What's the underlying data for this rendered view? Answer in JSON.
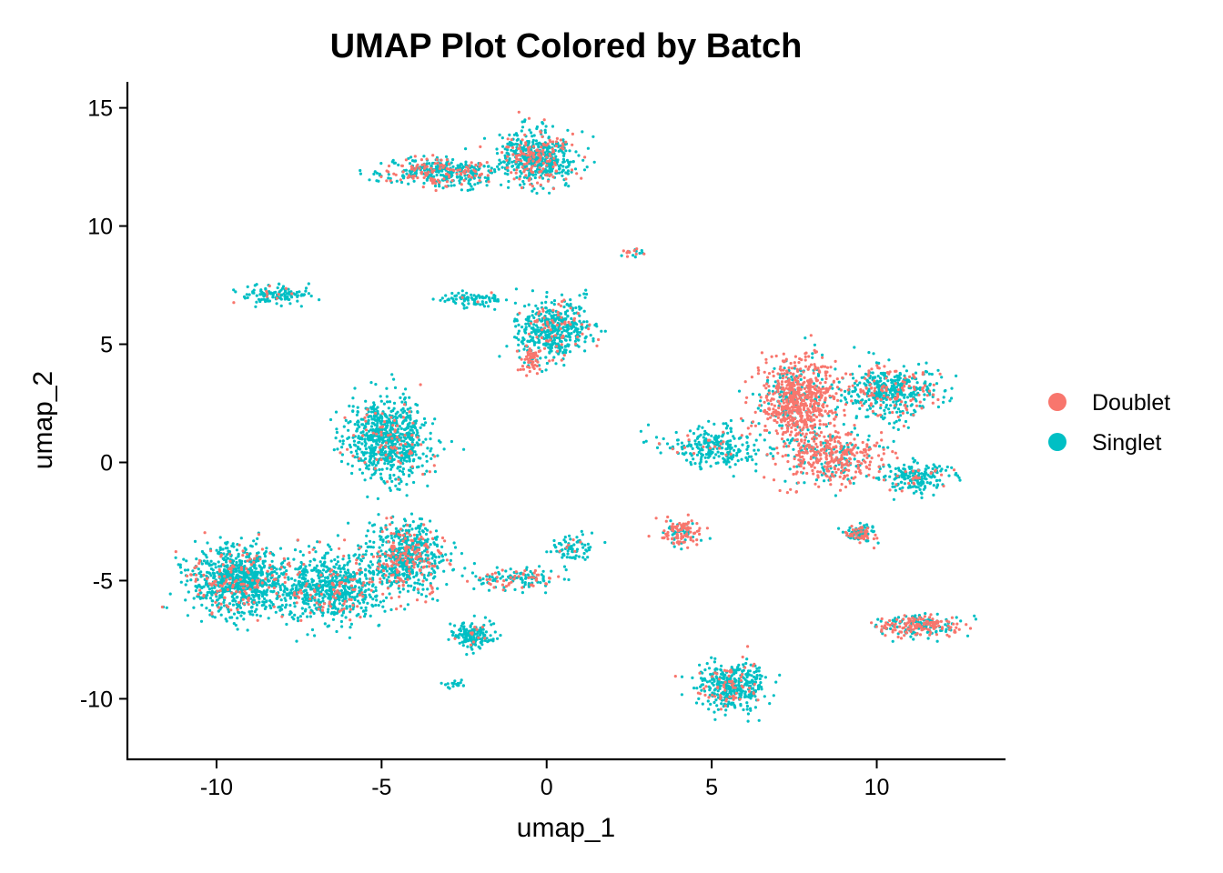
{
  "chart_data": {
    "type": "scatter",
    "title": "UMAP Plot Colored by Batch",
    "xlabel": "umap_1",
    "ylabel": "umap_2",
    "xlim": [
      -12.7,
      13.9
    ],
    "ylim": [
      -12.6,
      16.1
    ],
    "x_ticks": [
      -10,
      -5,
      0,
      5,
      10
    ],
    "y_ticks": [
      -10,
      -5,
      0,
      5,
      10,
      15
    ],
    "x_tick_labels": [
      "-10",
      "-5",
      "0",
      "5",
      "10"
    ],
    "y_tick_labels": [
      "-10",
      "-5",
      "0",
      "5",
      "10",
      "15"
    ],
    "grid": false,
    "legend_position": "right",
    "series": [
      {
        "name": "Doublet",
        "color": "#F8766D"
      },
      {
        "name": "Singlet",
        "color": "#00BFC4"
      }
    ],
    "clusters": [
      {
        "cx": -0.3,
        "cy": 12.9,
        "sx": 1.0,
        "sy": 1.0,
        "n": 600,
        "doublet_frac": 0.25
      },
      {
        "cx": -3.2,
        "cy": 12.3,
        "sx": 1.6,
        "sy": 0.55,
        "n": 420,
        "doublet_frac": 0.3
      },
      {
        "cx": -8.2,
        "cy": 7.1,
        "sx": 1.0,
        "sy": 0.35,
        "n": 120,
        "doublet_frac": 0.1
      },
      {
        "cx": 0.2,
        "cy": 5.6,
        "sx": 1.0,
        "sy": 1.1,
        "n": 480,
        "doublet_frac": 0.15
      },
      {
        "cx": -0.5,
        "cy": 4.4,
        "sx": 0.3,
        "sy": 0.5,
        "n": 60,
        "doublet_frac": 0.9
      },
      {
        "cx": -2.2,
        "cy": 6.9,
        "sx": 1.0,
        "sy": 0.3,
        "n": 90,
        "doublet_frac": 0.05
      },
      {
        "cx": 7.6,
        "cy": 2.6,
        "sx": 1.0,
        "sy": 1.6,
        "n": 750,
        "doublet_frac": 0.78
      },
      {
        "cx": 10.4,
        "cy": 3.0,
        "sx": 1.3,
        "sy": 1.0,
        "n": 480,
        "doublet_frac": 0.25
      },
      {
        "cx": 8.6,
        "cy": 0.2,
        "sx": 1.4,
        "sy": 1.0,
        "n": 420,
        "doublet_frac": 0.7
      },
      {
        "cx": 11.3,
        "cy": -0.6,
        "sx": 0.8,
        "sy": 0.6,
        "n": 200,
        "doublet_frac": 0.1
      },
      {
        "cx": 5.0,
        "cy": 0.7,
        "sx": 1.4,
        "sy": 0.8,
        "n": 260,
        "doublet_frac": 0.08
      },
      {
        "cx": 9.5,
        "cy": -3.0,
        "sx": 0.5,
        "sy": 0.35,
        "n": 110,
        "doublet_frac": 0.5
      },
      {
        "cx": 11.3,
        "cy": -6.9,
        "sx": 1.1,
        "sy": 0.4,
        "n": 260,
        "doublet_frac": 0.55
      },
      {
        "cx": 5.6,
        "cy": -9.5,
        "sx": 0.9,
        "sy": 0.9,
        "n": 420,
        "doublet_frac": 0.2
      },
      {
        "cx": 4.1,
        "cy": -3.0,
        "sx": 0.55,
        "sy": 0.5,
        "n": 130,
        "doublet_frac": 0.7
      },
      {
        "cx": -4.8,
        "cy": 1.0,
        "sx": 1.1,
        "sy": 1.5,
        "n": 800,
        "doublet_frac": 0.08
      },
      {
        "cx": -9.3,
        "cy": -5.0,
        "sx": 1.3,
        "sy": 1.3,
        "n": 900,
        "doublet_frac": 0.15
      },
      {
        "cx": -6.6,
        "cy": -5.3,
        "sx": 1.4,
        "sy": 1.3,
        "n": 700,
        "doublet_frac": 0.15
      },
      {
        "cx": -4.3,
        "cy": -4.0,
        "sx": 1.1,
        "sy": 1.3,
        "n": 650,
        "doublet_frac": 0.25
      },
      {
        "cx": -2.2,
        "cy": -7.3,
        "sx": 0.55,
        "sy": 0.5,
        "n": 160,
        "doublet_frac": 0.05
      },
      {
        "cx": -1.0,
        "cy": -4.9,
        "sx": 1.3,
        "sy": 0.4,
        "n": 140,
        "doublet_frac": 0.3
      },
      {
        "cx": 0.7,
        "cy": -3.6,
        "sx": 0.6,
        "sy": 0.5,
        "n": 80,
        "doublet_frac": 0.1
      },
      {
        "cx": 2.6,
        "cy": 8.9,
        "sx": 0.35,
        "sy": 0.15,
        "n": 18,
        "doublet_frac": 0.45
      },
      {
        "cx": -2.8,
        "cy": -9.4,
        "sx": 0.3,
        "sy": 0.15,
        "n": 20,
        "doublet_frac": 0.0
      }
    ]
  }
}
